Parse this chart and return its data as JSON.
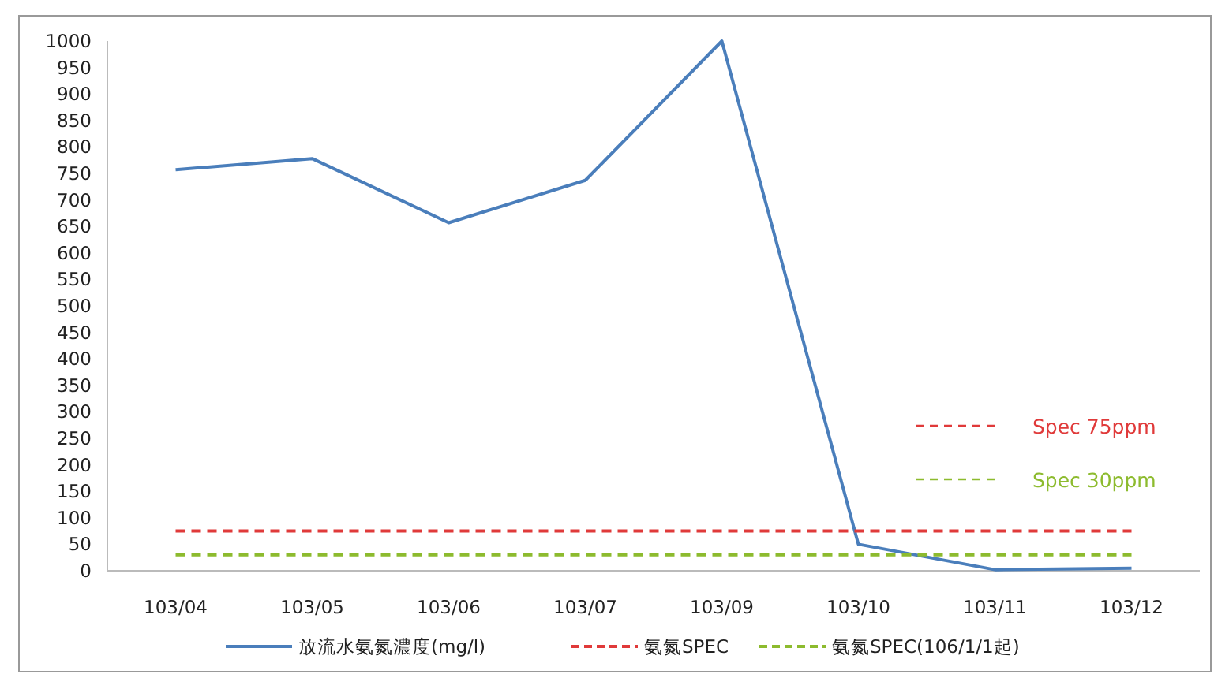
{
  "chart_data": {
    "type": "line",
    "categories": [
      "103/04",
      "103/05",
      "103/06",
      "103/07",
      "103/09",
      "103/10",
      "103/11",
      "103/12"
    ],
    "series": [
      {
        "name": "放流水氨氮濃度(mg/l)",
        "color": "#4a7ebb",
        "values": [
          757,
          778,
          657,
          737,
          1000,
          50,
          2,
          5
        ],
        "line_style": "solid"
      },
      {
        "name": "氨氮SPEC",
        "color": "#e03a3a",
        "values": [
          75,
          75,
          75,
          75,
          75,
          75,
          75,
          75
        ],
        "line_style": "dashed"
      },
      {
        "name": "氨氮SPEC(106/1/1起)",
        "color": "#8dbb2e",
        "values": [
          30,
          30,
          30,
          30,
          30,
          30,
          30,
          30
        ],
        "line_style": "dashed"
      }
    ],
    "ylim": [
      0,
      1000
    ],
    "yticks": [
      0,
      50,
      100,
      150,
      200,
      250,
      300,
      350,
      400,
      450,
      500,
      550,
      600,
      650,
      700,
      750,
      800,
      850,
      900,
      950,
      1000
    ],
    "annotations": [
      "Spec 75ppm",
      "Spec 30ppm"
    ],
    "grid": false,
    "legend": "bottom",
    "marker": "none"
  }
}
